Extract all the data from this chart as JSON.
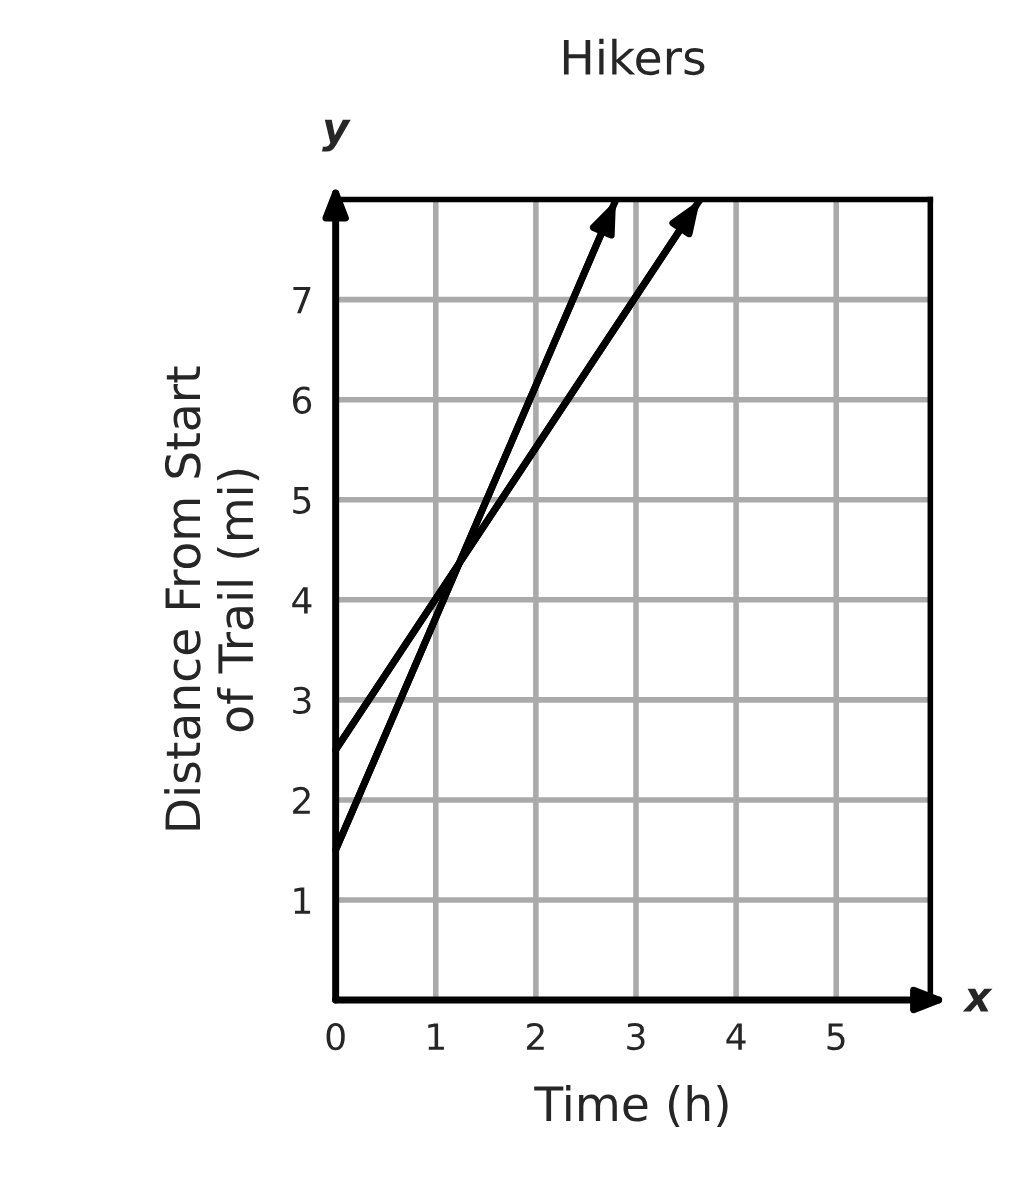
{
  "chart_data": {
    "type": "line",
    "title": "Hikers",
    "xlabel": "Time (h)",
    "ylabel": "Distance From Start\nof Trail (mi)",
    "annotations": [
      "x",
      "y"
    ],
    "series": [
      {
        "color": "#000000",
        "x": [
          0,
          2.8
        ],
        "values": [
          1.5,
          8
        ]
      },
      {
        "color": "#000000",
        "x": [
          0,
          3.64
        ],
        "values": [
          2.5,
          8
        ]
      }
    ],
    "xlim": [
      0,
      5.94
    ],
    "ylim": [
      0,
      8
    ],
    "xticks": [
      0,
      1,
      2,
      3,
      4,
      5
    ],
    "yticks": [
      1,
      2,
      3,
      4,
      5,
      6,
      7
    ],
    "grid": true,
    "marker": "none",
    "line_style": "solid"
  }
}
